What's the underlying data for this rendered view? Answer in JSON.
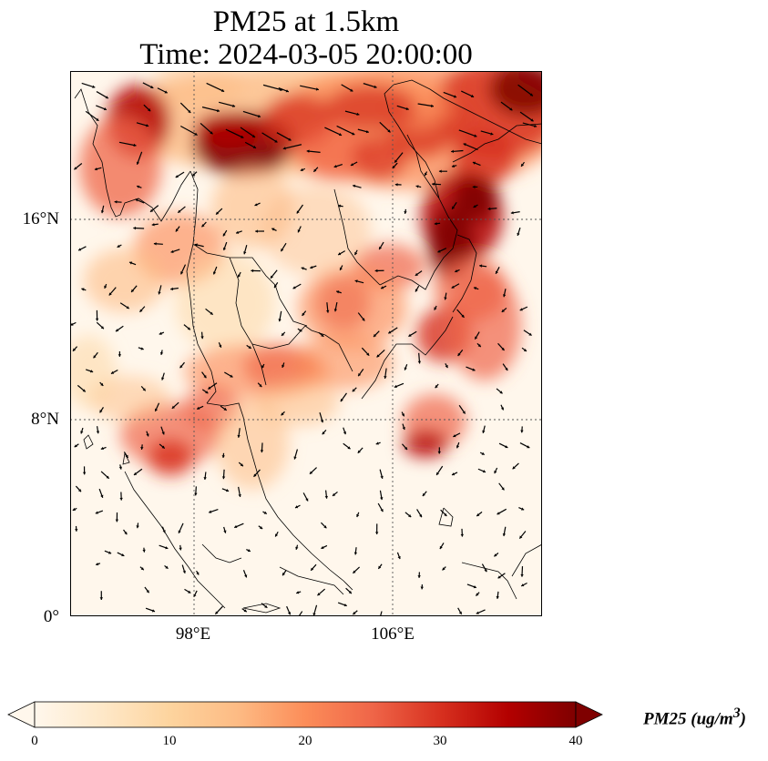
{
  "title_line1": "PM25 at 1.5km",
  "title_line2": "Time: 2024-03-05 20:00:00",
  "map": {
    "variable": "PM25",
    "height": "1.5km",
    "lat_ticks": [
      "16°N",
      "8°N",
      "0°"
    ],
    "lon_ticks": [
      "98°E",
      "106°E"
    ],
    "gridlines": true,
    "colormap": "OrRd",
    "colors": [
      "#fff7ec",
      "#fee8c8",
      "#fdd49e",
      "#fdbb84",
      "#fc8d59",
      "#ef6548",
      "#d7301f",
      "#b30000",
      "#7f0000"
    ]
  },
  "colorbar": {
    "ticks": [
      "0",
      "10",
      "20",
      "30",
      "40"
    ],
    "min": 0,
    "max": 40,
    "extend": "both",
    "label": "PM25 (ug/m",
    "label_sup": "3",
    "label_close": ")"
  }
}
